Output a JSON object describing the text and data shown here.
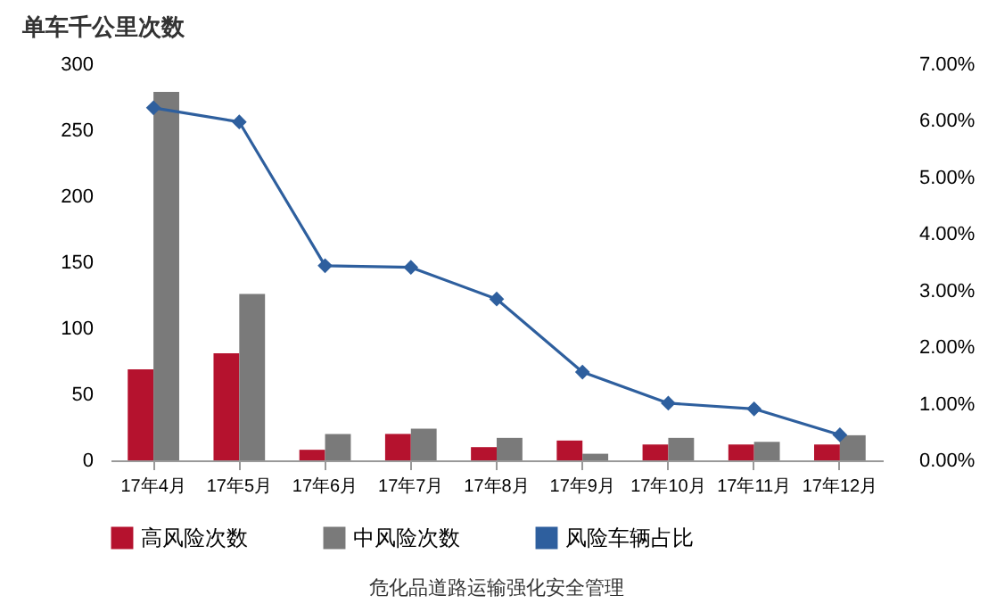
{
  "chart_data": {
    "type": "bar",
    "ylabel": "单车千公里次数",
    "categories": [
      "17年4月",
      "17年5月",
      "17年6月",
      "17年7月",
      "17年8月",
      "17年9月",
      "17年10月",
      "17年11月",
      "17年12月"
    ],
    "series": [
      {
        "name": "高风险次数",
        "color": "#b5122e",
        "values": [
          69,
          81,
          8,
          20,
          10,
          15,
          12,
          12,
          12
        ]
      },
      {
        "name": "中风险次数",
        "color": "#7a7a7a",
        "values": [
          279,
          126,
          20,
          24,
          17,
          5,
          17,
          14,
          19
        ]
      },
      {
        "name": "风险车辆占比",
        "type": "line",
        "axis": "y2",
        "color": "#2e5f9e",
        "marker": "diamond",
        "values": [
          6.23,
          5.98,
          3.44,
          3.41,
          2.85,
          1.56,
          1.01,
          0.91,
          0.45
        ]
      }
    ],
    "ylim": [
      0,
      300
    ],
    "yticks": [
      0,
      50,
      100,
      150,
      200,
      250,
      300
    ],
    "y2lim": [
      0,
      7
    ],
    "y2ticks": [
      {
        "value": 0,
        "label": "0.00%"
      },
      {
        "value": 1,
        "label": "1.00%"
      },
      {
        "value": 2,
        "label": "2.00%"
      },
      {
        "value": 3,
        "label": "3.00%"
      },
      {
        "value": 4,
        "label": "4.00%"
      },
      {
        "value": 5,
        "label": "5.00%"
      },
      {
        "value": 6,
        "label": "6.00%"
      },
      {
        "value": 7,
        "label": "7.00%"
      }
    ],
    "legend": "bottom",
    "grid": false,
    "annotations": [
      "危化品道路运输强化安全管理"
    ]
  }
}
